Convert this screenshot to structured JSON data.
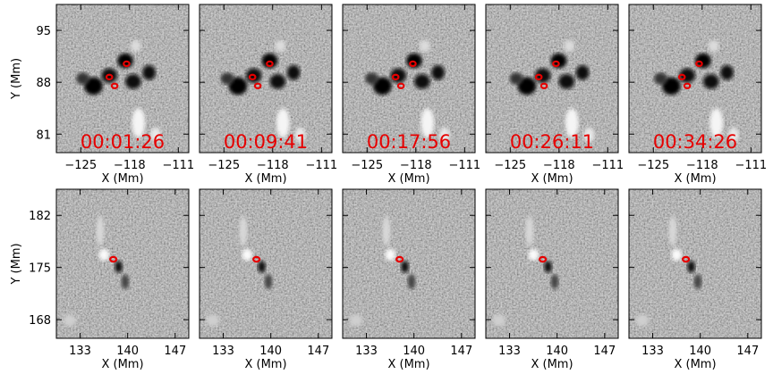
{
  "figure": {
    "colors": {
      "contour": "#e60000",
      "frame": "#000000",
      "background_gray": "#8c8c8c"
    },
    "rows": [
      {
        "ylabel": "Y (Mm)",
        "xlabel": "X (Mm)",
        "x_ticks": [
          {
            "value": -125,
            "label": "−125"
          },
          {
            "value": -118,
            "label": "−118"
          },
          {
            "value": -111,
            "label": "−111"
          }
        ],
        "y_ticks": [
          {
            "value": 95,
            "label": "95"
          },
          {
            "value": 88,
            "label": "88"
          },
          {
            "value": 81,
            "label": "81"
          }
        ],
        "xlim": [
          -128.5,
          -109.5
        ],
        "ylim": [
          78.5,
          98.5
        ],
        "panels": [
          {
            "time": "00:01:26"
          },
          {
            "time": "00:09:41"
          },
          {
            "time": "00:17:56"
          },
          {
            "time": "00:26:11"
          },
          {
            "time": "00:34:26"
          }
        ]
      },
      {
        "ylabel": "Y (Mm)",
        "xlabel": "X (Mm)",
        "x_ticks": [
          {
            "value": 133,
            "label": "133"
          },
          {
            "value": 140,
            "label": "140"
          },
          {
            "value": 147,
            "label": "147"
          }
        ],
        "y_ticks": [
          {
            "value": 182,
            "label": "182"
          },
          {
            "value": 175,
            "label": "175"
          },
          {
            "value": 168,
            "label": "168"
          }
        ],
        "xlim": [
          129.5,
          149.0
        ],
        "ylim": [
          165.5,
          185.5
        ],
        "panels": [
          {
            "time": ""
          },
          {
            "time": ""
          },
          {
            "time": ""
          },
          {
            "time": ""
          },
          {
            "time": ""
          }
        ]
      }
    ]
  }
}
